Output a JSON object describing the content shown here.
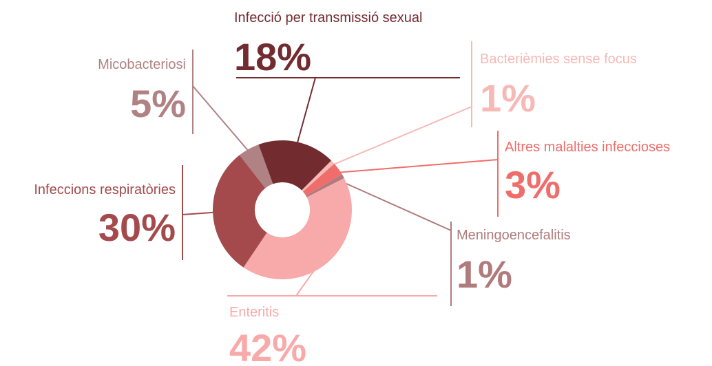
{
  "chart_data": {
    "type": "pie",
    "donut": true,
    "categories": [
      "Infecció per transmissió sexual",
      "Bacterièmies sense focus",
      "Altres malalties infeccioses",
      "Meningoencefalitis",
      "Enteritis",
      "Infeccions respiratòries",
      "Micobacteriosi"
    ],
    "values": [
      18,
      1,
      3,
      1,
      42,
      30,
      5
    ],
    "value_labels": [
      "18%",
      "1%",
      "3%",
      "1%",
      "42%",
      "30%",
      "5%"
    ],
    "colors": [
      "#722c30",
      "#f6b9b6",
      "#ef6d6a",
      "#b07b7d",
      "#f8a9a9",
      "#a44a4c",
      "#b08283"
    ]
  }
}
